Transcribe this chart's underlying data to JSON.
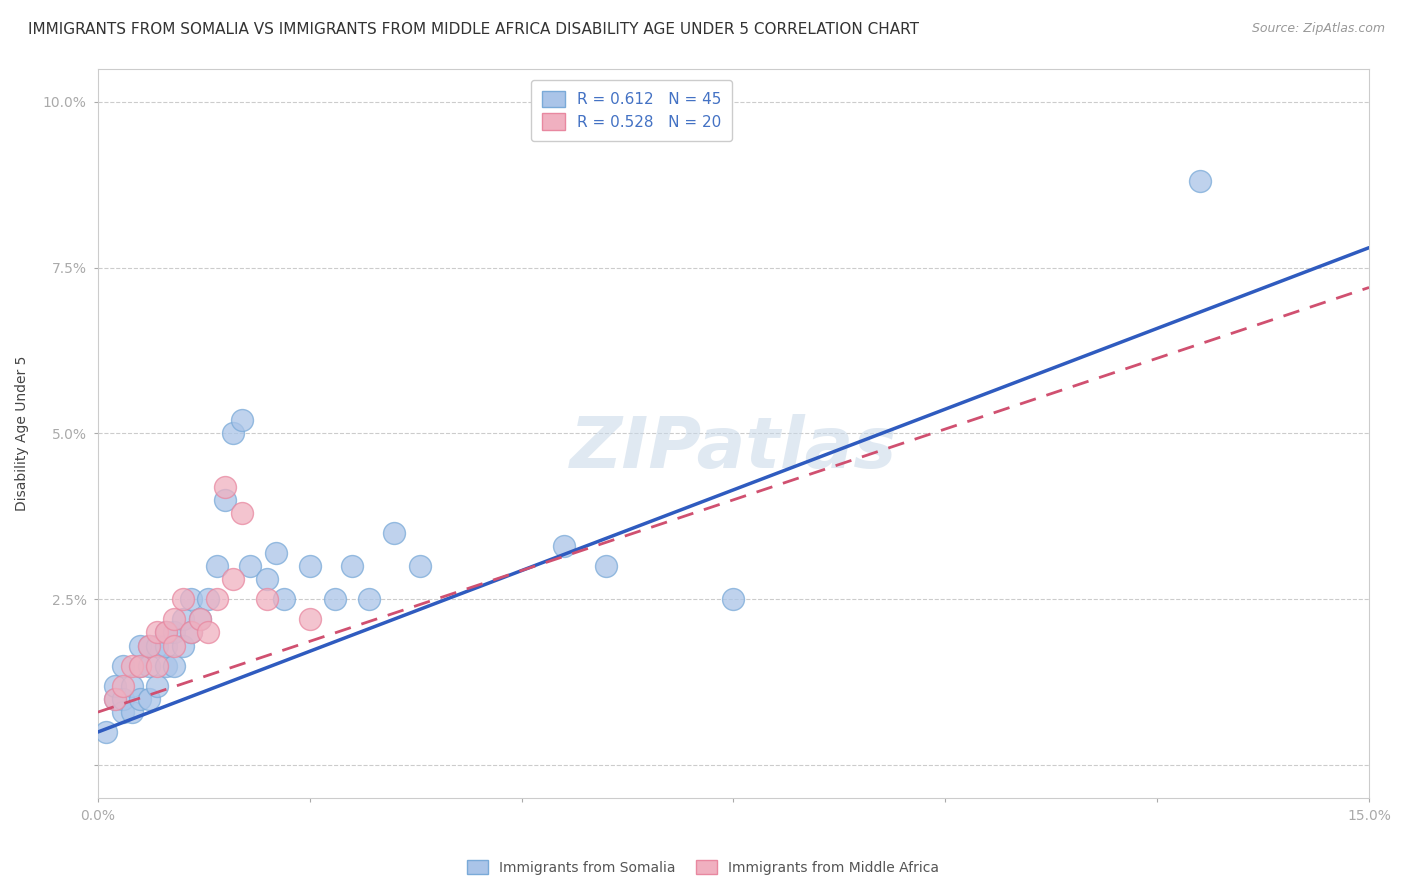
{
  "title": "IMMIGRANTS FROM SOMALIA VS IMMIGRANTS FROM MIDDLE AFRICA DISABILITY AGE UNDER 5 CORRELATION CHART",
  "source": "Source: ZipAtlas.com",
  "ylabel": "Disability Age Under 5",
  "xlim": [
    0.0,
    0.15
  ],
  "ylim": [
    -0.005,
    0.105
  ],
  "yticks": [
    0.0,
    0.025,
    0.05,
    0.075,
    0.1
  ],
  "ytick_labels": [
    "",
    "2.5%",
    "5.0%",
    "7.5%",
    "10.0%"
  ],
  "xtick_labels": [
    "0.0%",
    "",
    "",
    "",
    "",
    "",
    "15.0%"
  ],
  "somalia_color": "#aac4e8",
  "somalia_edge": "#7aaad8",
  "middle_africa_color": "#f0b0c0",
  "middle_africa_edge": "#e888a0",
  "line_somalia_color": "#2f5bbf",
  "line_middle_africa_color": "#d05070",
  "legend_somalia_R": "0.612",
  "legend_somalia_N": "45",
  "legend_middle_africa_R": "0.528",
  "legend_middle_africa_N": "20",
  "somalia_x": [
    0.001,
    0.002,
    0.002,
    0.003,
    0.003,
    0.003,
    0.004,
    0.004,
    0.005,
    0.005,
    0.005,
    0.006,
    0.006,
    0.006,
    0.007,
    0.007,
    0.008,
    0.008,
    0.008,
    0.009,
    0.009,
    0.01,
    0.01,
    0.011,
    0.011,
    0.012,
    0.013,
    0.014,
    0.015,
    0.016,
    0.017,
    0.018,
    0.02,
    0.021,
    0.022,
    0.025,
    0.028,
    0.03,
    0.032,
    0.035,
    0.038,
    0.055,
    0.06,
    0.075,
    0.13
  ],
  "somalia_y": [
    0.005,
    0.01,
    0.012,
    0.008,
    0.01,
    0.015,
    0.008,
    0.012,
    0.01,
    0.015,
    0.018,
    0.01,
    0.015,
    0.018,
    0.012,
    0.018,
    0.015,
    0.018,
    0.02,
    0.015,
    0.02,
    0.018,
    0.022,
    0.02,
    0.025,
    0.022,
    0.025,
    0.03,
    0.04,
    0.05,
    0.052,
    0.03,
    0.028,
    0.032,
    0.025,
    0.03,
    0.025,
    0.03,
    0.025,
    0.035,
    0.03,
    0.033,
    0.03,
    0.025,
    0.088
  ],
  "middle_africa_x": [
    0.002,
    0.003,
    0.004,
    0.005,
    0.006,
    0.007,
    0.007,
    0.008,
    0.009,
    0.009,
    0.01,
    0.011,
    0.012,
    0.013,
    0.014,
    0.015,
    0.016,
    0.017,
    0.02,
    0.025
  ],
  "middle_africa_y": [
    0.01,
    0.012,
    0.015,
    0.015,
    0.018,
    0.015,
    0.02,
    0.02,
    0.018,
    0.022,
    0.025,
    0.02,
    0.022,
    0.02,
    0.025,
    0.042,
    0.028,
    0.038,
    0.025,
    0.022
  ],
  "somalia_line_x0": 0.0,
  "somalia_line_y0": 0.005,
  "somalia_line_x1": 0.15,
  "somalia_line_y1": 0.078,
  "middle_africa_line_x0": 0.0,
  "middle_africa_line_y0": 0.008,
  "middle_africa_line_x1": 0.15,
  "middle_africa_line_y1": 0.072,
  "watermark": "ZIPatlas",
  "background_color": "#ffffff",
  "grid_color": "#cccccc",
  "title_fontsize": 11,
  "axis_label_fontsize": 10,
  "tick_fontsize": 10,
  "legend_fontsize": 11
}
